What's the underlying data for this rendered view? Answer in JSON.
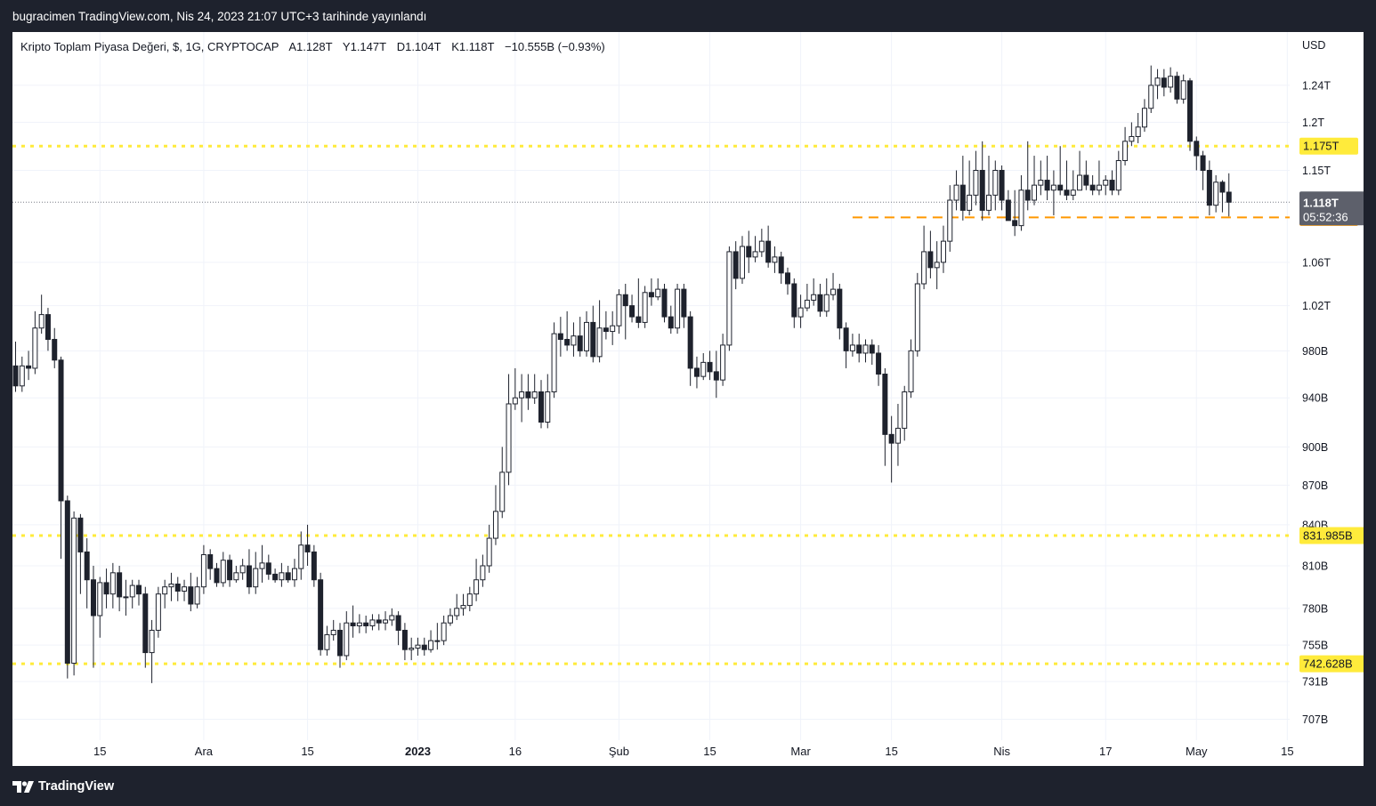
{
  "header": {
    "publisher_text": "bugracimen TradingView.com, Nis 24, 2023 21:07 UTC+3 tarihinde yayınlandı"
  },
  "legend": {
    "symbol": "Kripto Toplam Piyasa Değeri, $, 1G, CRYPTOCAP",
    "open": "A1.128T",
    "high": "Y1.147T",
    "low": "D1.104T",
    "close": "K1.118T",
    "change": "−10.555B (−0.93%)"
  },
  "currency": "USD",
  "footer": {
    "brand": "TradingView"
  },
  "colors": {
    "background": "#1e222d",
    "plot_background": "#ffffff",
    "candle": "#1e222d",
    "level_line": "#ffeb3b",
    "level_badge": "#ffeb3b",
    "price_line": "#ff9800",
    "last_badge": "#5d606b"
  },
  "chart_data": {
    "type": "candlestick",
    "title": "Kripto Toplam Piyasa Değeri, $, 1G, CRYPTOCAP",
    "y_scale": "log",
    "ylim": [
      694,
      1300
    ],
    "y_ticks": [
      {
        "v": 1240,
        "label": "1.24T"
      },
      {
        "v": 1200,
        "label": "1.2T"
      },
      {
        "v": 1150,
        "label": "1.15T"
      },
      {
        "v": 1060,
        "label": "1.06T"
      },
      {
        "v": 1020,
        "label": "1.02T"
      },
      {
        "v": 980,
        "label": "980B"
      },
      {
        "v": 940,
        "label": "940B"
      },
      {
        "v": 900,
        "label": "900B"
      },
      {
        "v": 870,
        "label": "870B"
      },
      {
        "v": 840,
        "label": "840B"
      },
      {
        "v": 810,
        "label": "810B"
      },
      {
        "v": 780,
        "label": "780B"
      },
      {
        "v": 755,
        "label": "755B"
      },
      {
        "v": 731,
        "label": "731B"
      },
      {
        "v": 707,
        "label": "707B"
      }
    ],
    "x_ticks": [
      {
        "i": 13,
        "label": "15",
        "bold": false
      },
      {
        "i": 29,
        "label": "Ara",
        "bold": false
      },
      {
        "i": 45,
        "label": "15",
        "bold": false
      },
      {
        "i": 62,
        "label": "2023",
        "bold": true
      },
      {
        "i": 77,
        "label": "16",
        "bold": false
      },
      {
        "i": 93,
        "label": "Şub",
        "bold": false
      },
      {
        "i": 107,
        "label": "15",
        "bold": false
      },
      {
        "i": 121,
        "label": "Mar",
        "bold": false
      },
      {
        "i": 135,
        "label": "15",
        "bold": false
      },
      {
        "i": 152,
        "label": "Nis",
        "bold": false
      },
      {
        "i": 168,
        "label": "17",
        "bold": false
      },
      {
        "i": 182,
        "label": "May",
        "bold": false
      },
      {
        "i": 196,
        "label": "15",
        "bold": false
      }
    ],
    "levels": [
      {
        "value": 1175,
        "label": "1.175T"
      },
      {
        "value": 831.985,
        "label": "831.985B"
      },
      {
        "value": 742.628,
        "label": "742.628B"
      }
    ],
    "price_line": {
      "value": 1103,
      "label": "1.103T"
    },
    "last_price": {
      "value": 1118,
      "label": "1.118T",
      "countdown": "05:52:36"
    },
    "candles": [
      [
        967,
        950,
        988,
        945
      ],
      [
        950,
        967,
        975,
        945
      ],
      [
        967,
        965,
        980,
        955
      ],
      [
        965,
        1000,
        1015,
        960
      ],
      [
        1000,
        1012,
        1030,
        995
      ],
      [
        1012,
        990,
        1018,
        980
      ],
      [
        990,
        972,
        1000,
        965
      ],
      [
        972,
        858,
        975,
        815
      ],
      [
        858,
        743,
        862,
        733
      ],
      [
        743,
        845,
        850,
        735
      ],
      [
        845,
        820,
        848,
        790
      ],
      [
        820,
        800,
        830,
        780
      ],
      [
        800,
        775,
        810,
        740
      ],
      [
        775,
        798,
        802,
        760
      ],
      [
        798,
        790,
        808,
        780
      ],
      [
        790,
        805,
        812,
        780
      ],
      [
        805,
        788,
        810,
        778
      ],
      [
        788,
        788,
        800,
        775
      ],
      [
        788,
        796,
        800,
        780
      ],
      [
        796,
        790,
        800,
        782
      ],
      [
        790,
        750,
        795,
        740
      ],
      [
        750,
        765,
        772,
        730
      ],
      [
        765,
        790,
        795,
        760
      ],
      [
        790,
        795,
        800,
        780
      ],
      [
        795,
        797,
        805,
        785
      ],
      [
        797,
        792,
        802,
        785
      ],
      [
        792,
        795,
        800,
        785
      ],
      [
        795,
        783,
        805,
        778
      ],
      [
        783,
        795,
        802,
        780
      ],
      [
        795,
        818,
        825,
        790
      ],
      [
        818,
        808,
        822,
        800
      ],
      [
        808,
        798,
        812,
        795
      ],
      [
        798,
        814,
        820,
        795
      ],
      [
        814,
        800,
        818,
        795
      ],
      [
        800,
        805,
        810,
        798
      ],
      [
        805,
        810,
        815,
        800
      ],
      [
        810,
        795,
        822,
        790
      ],
      [
        795,
        808,
        820,
        790
      ],
      [
        808,
        812,
        825,
        798
      ],
      [
        812,
        804,
        818,
        800
      ],
      [
        804,
        800,
        808,
        798
      ],
      [
        800,
        805,
        812,
        795
      ],
      [
        805,
        800,
        810,
        798
      ],
      [
        800,
        808,
        815,
        795
      ],
      [
        808,
        825,
        835,
        800
      ],
      [
        825,
        820,
        840,
        810
      ],
      [
        820,
        800,
        825,
        795
      ],
      [
        800,
        752,
        805,
        748
      ],
      [
        752,
        762,
        768,
        748
      ],
      [
        762,
        765,
        772,
        758
      ],
      [
        765,
        748,
        770,
        740
      ],
      [
        748,
        770,
        778,
        745
      ],
      [
        770,
        768,
        782,
        760
      ],
      [
        768,
        770,
        776,
        763
      ],
      [
        770,
        768,
        775,
        763
      ],
      [
        768,
        772,
        776,
        765
      ],
      [
        772,
        770,
        776,
        765
      ],
      [
        770,
        772,
        778,
        765
      ],
      [
        772,
        775,
        780,
        768
      ],
      [
        775,
        765,
        778,
        755
      ],
      [
        765,
        752,
        770,
        745
      ],
      [
        752,
        753,
        760,
        745
      ],
      [
        753,
        755,
        760,
        748
      ],
      [
        755,
        752,
        760,
        748
      ],
      [
        752,
        758,
        765,
        750
      ],
      [
        758,
        758,
        770,
        752
      ],
      [
        758,
        770,
        775,
        755
      ],
      [
        770,
        775,
        780,
        768
      ],
      [
        775,
        780,
        790,
        772
      ],
      [
        780,
        782,
        790,
        775
      ],
      [
        782,
        790,
        795,
        778
      ],
      [
        790,
        800,
        815,
        785
      ],
      [
        800,
        810,
        818,
        795
      ],
      [
        810,
        830,
        840,
        805
      ],
      [
        830,
        850,
        870,
        825
      ],
      [
        850,
        880,
        900,
        845
      ],
      [
        880,
        935,
        960,
        870
      ],
      [
        935,
        940,
        965,
        930
      ],
      [
        940,
        945,
        960,
        920
      ],
      [
        945,
        940,
        960,
        930
      ],
      [
        940,
        945,
        960,
        935
      ],
      [
        945,
        920,
        955,
        915
      ],
      [
        920,
        945,
        960,
        915
      ],
      [
        945,
        995,
        1005,
        940
      ],
      [
        995,
        990,
        1010,
        975
      ],
      [
        990,
        985,
        1015,
        980
      ],
      [
        985,
        993,
        1005,
        975
      ],
      [
        993,
        980,
        1010,
        975
      ],
      [
        980,
        1005,
        1015,
        975
      ],
      [
        1005,
        975,
        1020,
        970
      ],
      [
        975,
        1000,
        1025,
        970
      ],
      [
        1000,
        997,
        1015,
        990
      ],
      [
        997,
        1002,
        1015,
        985
      ],
      [
        1002,
        1030,
        1035,
        995
      ],
      [
        1030,
        1020,
        1040,
        990
      ],
      [
        1020,
        1010,
        1030,
        1005
      ],
      [
        1010,
        1005,
        1045,
        1000
      ],
      [
        1005,
        1032,
        1038,
        1000
      ],
      [
        1032,
        1028,
        1045,
        1020
      ],
      [
        1028,
        1035,
        1045,
        1025
      ],
      [
        1035,
        1010,
        1040,
        1005
      ],
      [
        1010,
        1000,
        1020,
        995
      ],
      [
        1000,
        1035,
        1040,
        995
      ],
      [
        1035,
        1010,
        1040,
        1000
      ],
      [
        1010,
        965,
        1015,
        950
      ],
      [
        965,
        958,
        975,
        948
      ],
      [
        958,
        970,
        978,
        955
      ],
      [
        970,
        962,
        980,
        955
      ],
      [
        962,
        955,
        980,
        940
      ],
      [
        955,
        985,
        995,
        950
      ],
      [
        985,
        1070,
        1075,
        980
      ],
      [
        1070,
        1045,
        1080,
        1035
      ],
      [
        1045,
        1075,
        1085,
        1040
      ],
      [
        1075,
        1065,
        1090,
        1050
      ],
      [
        1065,
        1070,
        1085,
        1060
      ],
      [
        1070,
        1080,
        1092,
        1065
      ],
      [
        1080,
        1060,
        1095,
        1055
      ],
      [
        1060,
        1065,
        1075,
        1050
      ],
      [
        1065,
        1050,
        1070,
        1040
      ],
      [
        1050,
        1040,
        1055,
        1030
      ],
      [
        1040,
        1010,
        1045,
        1000
      ],
      [
        1010,
        1018,
        1030,
        1000
      ],
      [
        1018,
        1025,
        1040,
        1015
      ],
      [
        1025,
        1030,
        1045,
        1020
      ],
      [
        1030,
        1015,
        1040,
        1010
      ],
      [
        1015,
        1030,
        1045,
        1010
      ],
      [
        1030,
        1035,
        1050,
        1025
      ],
      [
        1035,
        1000,
        1040,
        990
      ],
      [
        1000,
        980,
        1005,
        965
      ],
      [
        980,
        985,
        995,
        975
      ],
      [
        985,
        978,
        995,
        970
      ],
      [
        978,
        985,
        990,
        970
      ],
      [
        985,
        978,
        990,
        968
      ],
      [
        978,
        960,
        985,
        950
      ],
      [
        960,
        910,
        965,
        885
      ],
      [
        910,
        903,
        925,
        872
      ],
      [
        903,
        915,
        935,
        885
      ],
      [
        915,
        945,
        950,
        905
      ],
      [
        945,
        980,
        990,
        940
      ],
      [
        980,
        1040,
        1050,
        975
      ],
      [
        1040,
        1070,
        1095,
        1035
      ],
      [
        1070,
        1055,
        1090,
        1045
      ],
      [
        1055,
        1060,
        1080,
        1035
      ],
      [
        1060,
        1080,
        1095,
        1050
      ],
      [
        1080,
        1120,
        1135,
        1070
      ],
      [
        1120,
        1135,
        1150,
        1110
      ],
      [
        1135,
        1110,
        1165,
        1100
      ],
      [
        1110,
        1125,
        1160,
        1105
      ],
      [
        1125,
        1150,
        1170,
        1115
      ],
      [
        1150,
        1110,
        1180,
        1100
      ],
      [
        1110,
        1125,
        1165,
        1105
      ],
      [
        1125,
        1150,
        1160,
        1110
      ],
      [
        1150,
        1120,
        1155,
        1110
      ],
      [
        1120,
        1100,
        1130,
        1100
      ],
      [
        1100,
        1095,
        1130,
        1085
      ],
      [
        1095,
        1130,
        1145,
        1090
      ],
      [
        1130,
        1120,
        1180,
        1110
      ],
      [
        1120,
        1135,
        1165,
        1115
      ],
      [
        1135,
        1140,
        1160,
        1125
      ],
      [
        1140,
        1130,
        1165,
        1120
      ],
      [
        1130,
        1135,
        1150,
        1105
      ],
      [
        1135,
        1130,
        1175,
        1125
      ],
      [
        1130,
        1125,
        1160,
        1120
      ],
      [
        1125,
        1130,
        1150,
        1120
      ],
      [
        1130,
        1145,
        1170,
        1130
      ],
      [
        1145,
        1135,
        1160,
        1130
      ],
      [
        1135,
        1130,
        1145,
        1125
      ],
      [
        1130,
        1135,
        1160,
        1125
      ],
      [
        1135,
        1140,
        1145,
        1125
      ],
      [
        1140,
        1130,
        1150,
        1125
      ],
      [
        1130,
        1160,
        1170,
        1125
      ],
      [
        1160,
        1180,
        1195,
        1155
      ],
      [
        1180,
        1185,
        1200,
        1175
      ],
      [
        1185,
        1195,
        1210,
        1178
      ],
      [
        1195,
        1215,
        1225,
        1190
      ],
      [
        1215,
        1240,
        1262,
        1210
      ],
      [
        1240,
        1248,
        1258,
        1225
      ],
      [
        1248,
        1238,
        1258,
        1228
      ],
      [
        1238,
        1250,
        1260,
        1232
      ],
      [
        1250,
        1225,
        1255,
        1220
      ],
      [
        1225,
        1245,
        1252,
        1220
      ],
      [
        1245,
        1180,
        1248,
        1170
      ],
      [
        1180,
        1165,
        1185,
        1150
      ],
      [
        1165,
        1150,
        1170,
        1130
      ],
      [
        1150,
        1115,
        1160,
        1105
      ],
      [
        1115,
        1138,
        1145,
        1108
      ],
      [
        1138,
        1128,
        1140,
        1108
      ],
      [
        1128,
        1118,
        1147,
        1104
      ]
    ]
  }
}
